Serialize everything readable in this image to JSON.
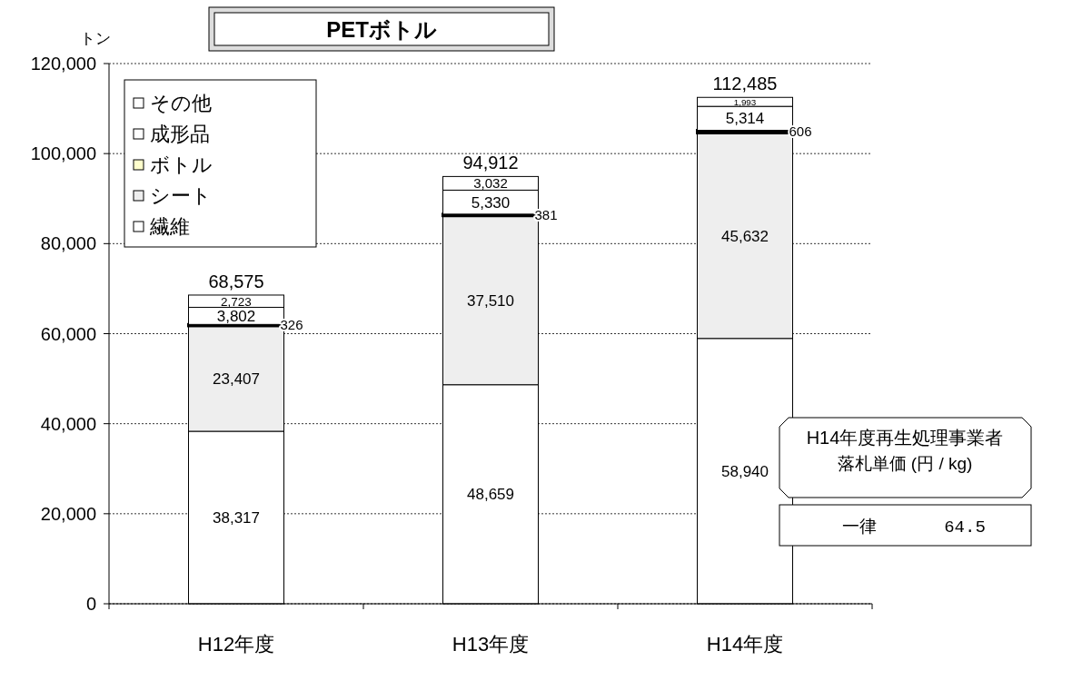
{
  "chart_data": {
    "type": "bar",
    "title": "PETボトル",
    "ylabel": "トン",
    "categories": [
      "H12年度",
      "H13年度",
      "H14年度"
    ],
    "stacked": true,
    "series": [
      {
        "name": "繊維",
        "color": "#ffffff",
        "values": [
          38317,
          48659,
          58940
        ],
        "value_labels": [
          "38,317",
          "48,659",
          "58,940"
        ]
      },
      {
        "name": "シート",
        "color": "#eeeeee",
        "values": [
          23407,
          37510,
          45632
        ],
        "value_labels": [
          "23,407",
          "37,510",
          "45,632"
        ]
      },
      {
        "name": "ボトル",
        "color": "#ffffcc",
        "values": [
          326,
          381,
          606
        ],
        "value_labels": [
          "326",
          "381",
          "606"
        ]
      },
      {
        "name": "成形品",
        "color": "#ffffff",
        "values": [
          3802,
          5330,
          5314
        ],
        "value_labels": [
          "3,802",
          "5,330",
          "5,314"
        ]
      },
      {
        "name": "その他",
        "color": "#ffffff",
        "values": [
          2723,
          3032,
          1993
        ],
        "value_labels": [
          "2,723",
          "3,032",
          "1,993"
        ]
      }
    ],
    "totals": [
      "68,575",
      "94,912",
      "112,485"
    ],
    "ylim": [
      0,
      120000
    ],
    "yticks": [
      {
        "value": 0,
        "label": "0"
      },
      {
        "value": 20000,
        "label": "20,000"
      },
      {
        "value": 40000,
        "label": "40,000"
      },
      {
        "value": 60000,
        "label": "60,000"
      },
      {
        "value": 80000,
        "label": "80,000"
      },
      {
        "value": 100000,
        "label": "100,000"
      },
      {
        "value": 120000,
        "label": "120,000"
      }
    ],
    "grid": "y",
    "legend": "top left",
    "annotations": [
      "H14年度再生処理事業者",
      "落札単価 (円 / kg)",
      "一律",
      "64.5"
    ]
  }
}
